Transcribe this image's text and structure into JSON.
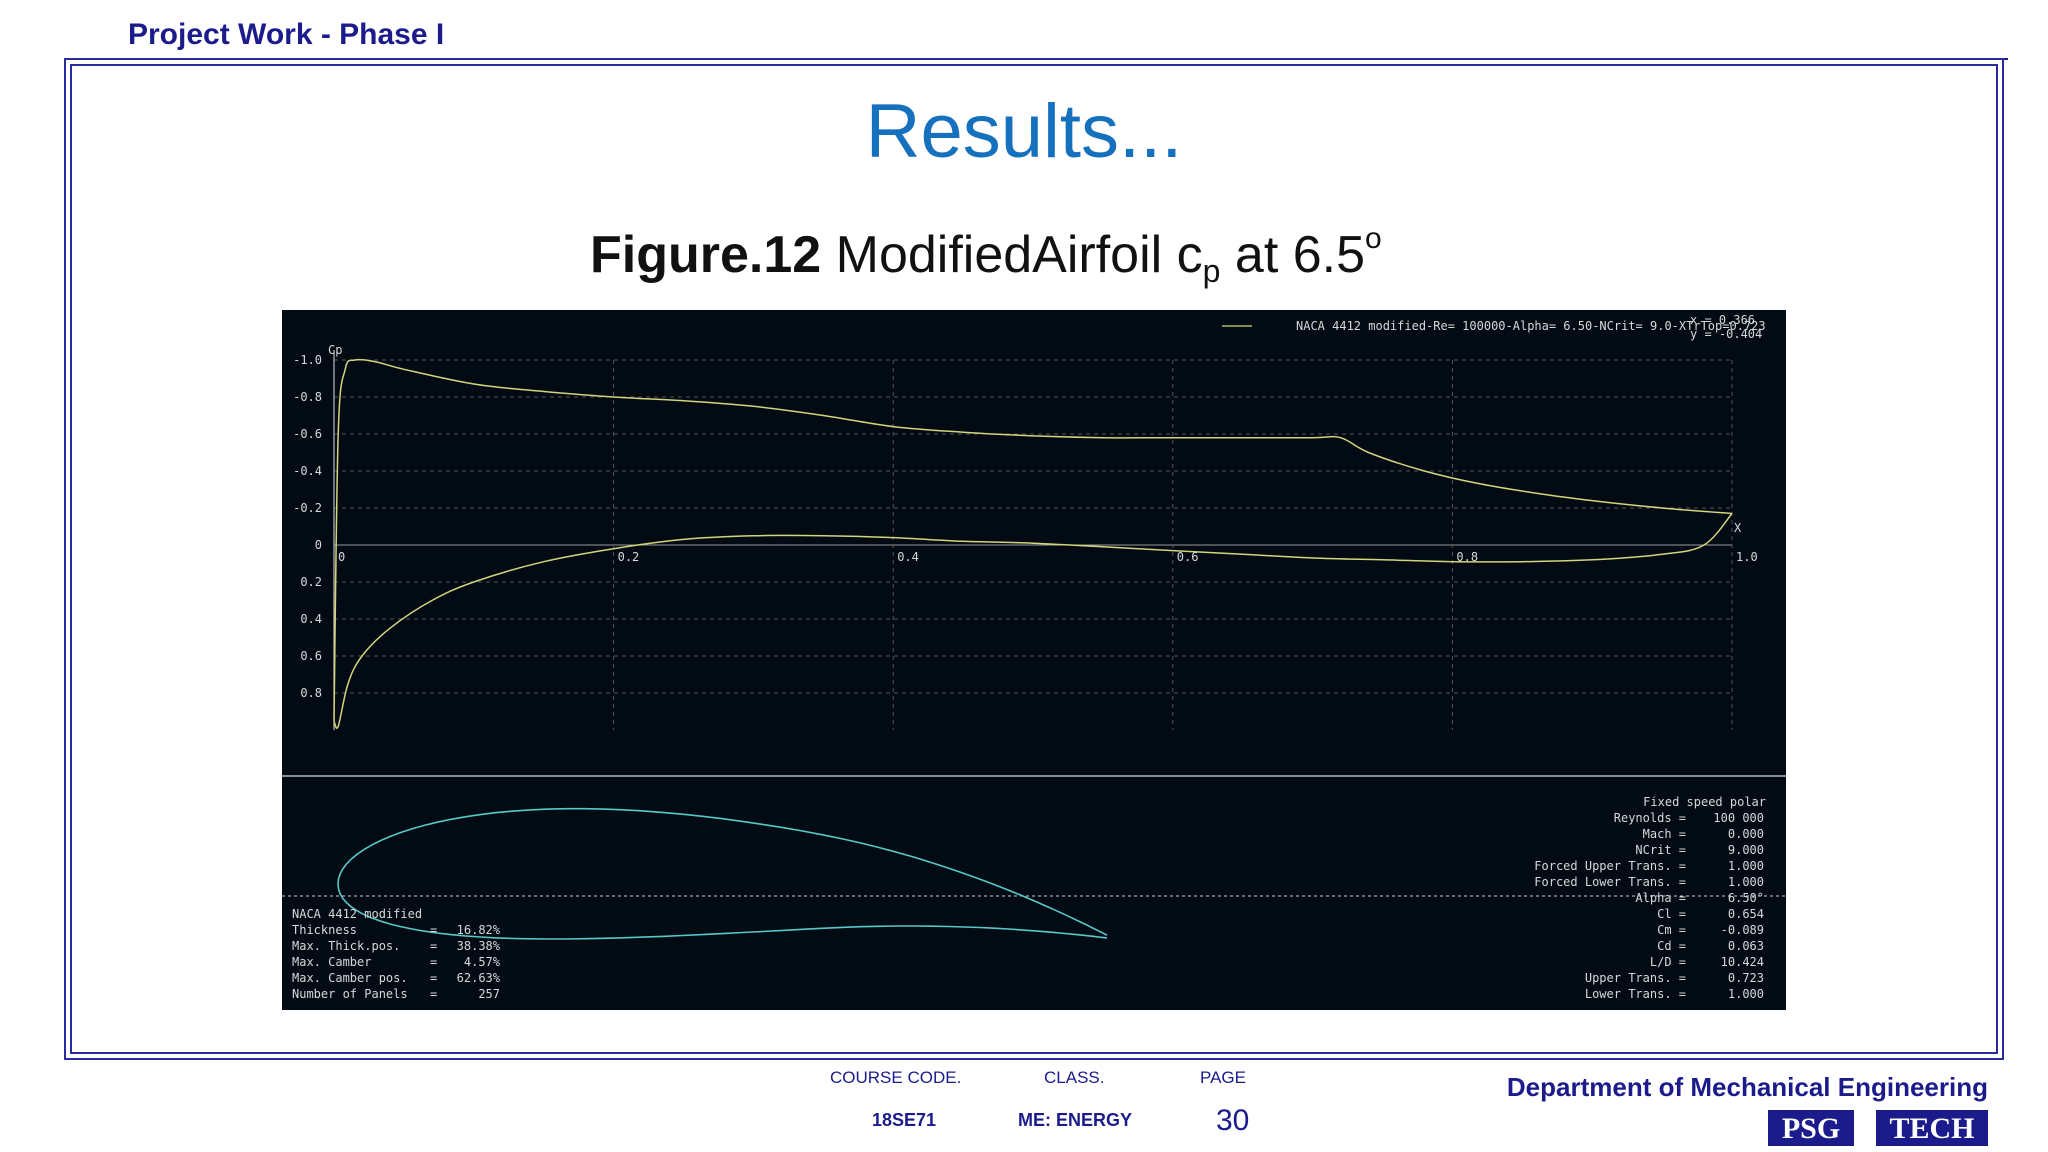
{
  "header": {
    "project": "Project Work - Phase I"
  },
  "slide": {
    "title": "Results...",
    "figure_label": "Figure.12",
    "caption_main": " ModifiedAirfoil c",
    "caption_sub": "p",
    "caption_mid": " at 6.5",
    "caption_sup": "o"
  },
  "chart_data": {
    "type": "line",
    "title": "NACA 4412 modified-Re= 100000-Alpha= 6.50-NCrit= 9.0-XTrTop=0.723",
    "ylabel": "Cp",
    "xlabel": "X",
    "xlim": [
      0,
      1.0
    ],
    "ylim": [
      -1.0,
      1.0
    ],
    "y_inverted": true,
    "grid": true,
    "x_ticks": [
      "0",
      "0.2",
      "0.4",
      "0.6",
      "0.8",
      "1.0"
    ],
    "y_ticks": [
      "-1.0",
      "-0.8",
      "-0.6",
      "-0.4",
      "-0.2",
      "0",
      "0.2",
      "0.4",
      "0.6",
      "0.8"
    ],
    "cursor_readout": [
      "x = 0.366",
      "y = -0.404"
    ],
    "series": [
      {
        "name": "upper",
        "x": [
          0,
          0.003,
          0.008,
          0.015,
          0.03,
          0.05,
          0.1,
          0.15,
          0.2,
          0.25,
          0.3,
          0.35,
          0.4,
          0.45,
          0.5,
          0.55,
          0.6,
          0.65,
          0.7,
          0.72,
          0.74,
          0.78,
          0.82,
          0.86,
          0.9,
          0.95,
          1.0
        ],
        "y": [
          0.95,
          -0.6,
          -0.95,
          -1.0,
          -0.99,
          -0.95,
          -0.87,
          -0.83,
          -0.8,
          -0.78,
          -0.75,
          -0.7,
          -0.64,
          -0.61,
          -0.59,
          -0.58,
          -0.58,
          -0.58,
          -0.58,
          -0.58,
          -0.5,
          -0.4,
          -0.33,
          -0.28,
          -0.24,
          -0.2,
          -0.17
        ]
      },
      {
        "name": "lower",
        "x": [
          0,
          0.003,
          0.01,
          0.02,
          0.04,
          0.07,
          0.1,
          0.15,
          0.2,
          0.25,
          0.3,
          0.35,
          0.4,
          0.45,
          0.5,
          0.55,
          0.6,
          0.65,
          0.7,
          0.75,
          0.8,
          0.85,
          0.9,
          0.95,
          0.98,
          1.0
        ],
        "y": [
          0.95,
          0.98,
          0.75,
          0.6,
          0.45,
          0.3,
          0.2,
          0.09,
          0.02,
          -0.03,
          -0.05,
          -0.05,
          -0.04,
          -0.02,
          -0.01,
          0.01,
          0.03,
          0.05,
          0.07,
          0.08,
          0.09,
          0.09,
          0.08,
          0.05,
          0.0,
          -0.17
        ]
      }
    ]
  },
  "airfoil_info": {
    "name": "NACA 4412 modified",
    "rows": [
      {
        "label": "Thickness",
        "value": "16.82%"
      },
      {
        "label": "Max. Thick.pos.",
        "value": "38.38%"
      },
      {
        "label": "Max. Camber",
        "value": "4.57%"
      },
      {
        "label": "Max. Camber pos.",
        "value": "62.63%"
      },
      {
        "label": "Number of Panels",
        "value": "257"
      }
    ]
  },
  "polar_info": {
    "heading": "Fixed speed polar",
    "rows": [
      {
        "label": "Reynolds =",
        "value": "100 000"
      },
      {
        "label": "Mach =",
        "value": "0.000"
      },
      {
        "label": "NCrit =",
        "value": "9.000"
      },
      {
        "label": "Forced Upper Trans. =",
        "value": "1.000"
      },
      {
        "label": "Forced Lower Trans. =",
        "value": "1.000"
      },
      {
        "label": "Alpha =",
        "value": "6.50°"
      },
      {
        "label": "Cl =",
        "value": "0.654"
      },
      {
        "label": "Cm =",
        "value": "-0.089"
      },
      {
        "label": "Cd =",
        "value": "0.063"
      },
      {
        "label": "L/D =",
        "value": "10.424"
      },
      {
        "label": "Upper Trans. =",
        "value": "0.723"
      },
      {
        "label": "Lower Trans. =",
        "value": "1.000"
      }
    ]
  },
  "footer": {
    "course_code_label": "COURSE CODE.",
    "course_code": "18SE71",
    "class_label": "CLASS.",
    "class_value": "ME: ENERGY",
    "page_label": "PAGE",
    "page_number": "30",
    "department": "Department of Mechanical Engineering",
    "logo_text": "PSG TECH"
  },
  "colors": {
    "brand_blue": "#1b1b8c",
    "title_blue": "#1570be",
    "plot_bg": "#020b14",
    "curve": "#d4d47a",
    "airfoil": "#55c8c8"
  }
}
